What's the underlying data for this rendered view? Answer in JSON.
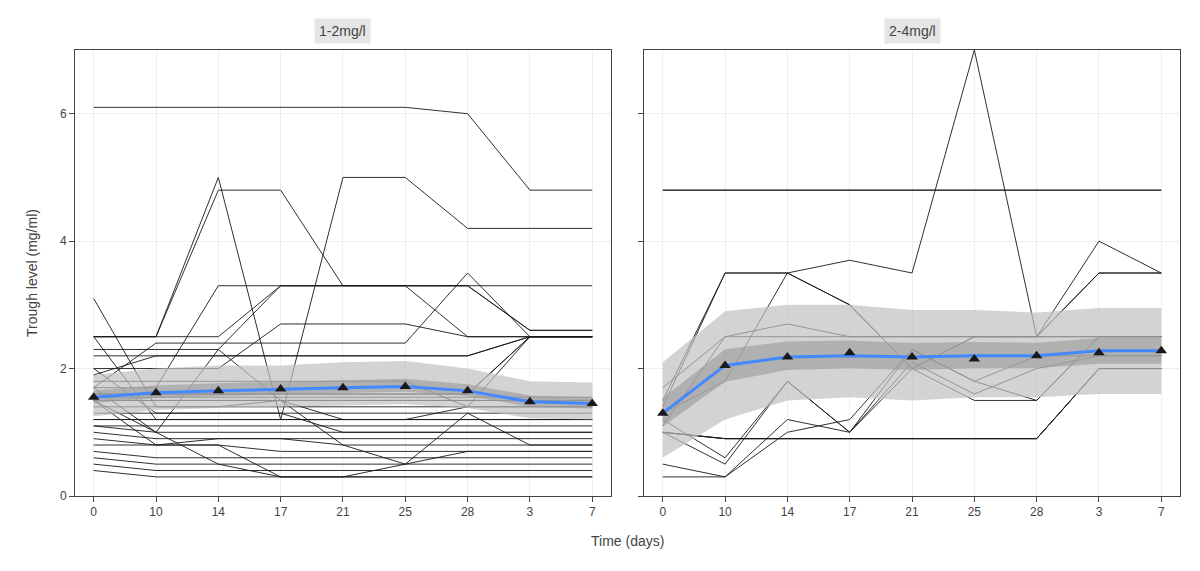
{
  "chart_data": [
    {
      "type": "line",
      "title": "1-2mg/l",
      "xlabel": "Time (days)",
      "ylabel": "Trough level (mg/ml)",
      "categories": [
        "0",
        "10",
        "14",
        "17",
        "21",
        "25",
        "28",
        "3",
        "7"
      ],
      "ylim": [
        0,
        7
      ],
      "yticks": [
        0,
        2,
        4,
        6
      ],
      "grid": true,
      "series": [
        {
          "type": "line",
          "color": "#1a1a1a",
          "values": [
            6.1,
            6.1,
            6.1,
            6.1,
            6.1,
            6.1,
            6.0,
            4.8,
            4.8
          ]
        },
        {
          "type": "line",
          "color": "#1a1a1a",
          "values": [
            2.5,
            2.5,
            5.0,
            1.2,
            5.0,
            5.0,
            4.2,
            4.2,
            4.2
          ]
        },
        {
          "type": "line",
          "color": "#1a1a1a",
          "values": [
            2.5,
            2.5,
            4.8,
            4.8,
            3.3,
            3.3,
            3.3,
            3.3,
            3.3
          ]
        },
        {
          "type": "line",
          "color": "#1a1a1a",
          "values": [
            2.5,
            2.5,
            2.5,
            3.3,
            3.3,
            3.3,
            3.3,
            2.6,
            2.6
          ]
        },
        {
          "type": "line",
          "color": "#1a1a1a",
          "values": [
            2.3,
            2.3,
            2.3,
            3.3,
            3.3,
            3.3,
            3.3,
            2.6,
            2.6
          ]
        },
        {
          "type": "line",
          "color": "#1a1a1a",
          "values": [
            2.2,
            2.2,
            2.2,
            2.2,
            2.2,
            2.2,
            2.2,
            2.5,
            2.5
          ]
        },
        {
          "type": "line",
          "color": "#1a1a1a",
          "values": [
            2.0,
            2.0,
            2.0,
            2.7,
            2.7,
            2.7,
            2.5,
            2.5,
            2.5
          ]
        },
        {
          "type": "line",
          "color": "#1a1a1a",
          "values": [
            1.9,
            2.2,
            2.2,
            2.2,
            2.2,
            2.2,
            2.2,
            2.5,
            2.5
          ]
        },
        {
          "type": "line",
          "color": "#1a1a1a",
          "values": [
            1.8,
            1.8,
            1.8,
            1.8,
            1.8,
            1.8,
            1.4,
            2.5,
            2.5
          ]
        },
        {
          "type": "line",
          "color": "#1a1a1a",
          "values": [
            1.7,
            2.4,
            2.4,
            2.4,
            2.4,
            2.4,
            3.5,
            2.5,
            2.5
          ]
        },
        {
          "type": "line",
          "color": "#1a1a1a",
          "values": [
            1.7,
            1.7,
            3.3,
            3.3,
            3.3,
            3.3,
            2.5,
            2.5,
            2.5
          ]
        },
        {
          "type": "line",
          "color": "#1a1a1a",
          "values": [
            1.6,
            1.6,
            1.6,
            1.6,
            1.6,
            1.6,
            1.6,
            2.5,
            2.5
          ]
        },
        {
          "type": "line",
          "color": "#1a1a1a",
          "values": [
            1.6,
            1.6,
            1.6,
            1.6,
            1.6,
            1.6,
            1.6,
            2.5,
            2.5
          ]
        },
        {
          "type": "line",
          "color": "#1a1a1a",
          "values": [
            1.55,
            1.55,
            1.55,
            1.55,
            1.55,
            1.55,
            1.55,
            1.55,
            1.55
          ]
        },
        {
          "type": "line",
          "color": "#1a1a1a",
          "values": [
            1.5,
            1.5,
            1.5,
            1.5,
            1.5,
            1.5,
            1.5,
            1.5,
            1.5
          ]
        },
        {
          "type": "line",
          "color": "#1a1a1a",
          "values": [
            1.5,
            1.5,
            1.5,
            1.5,
            1.5,
            1.5,
            1.5,
            1.5,
            1.5
          ]
        },
        {
          "type": "line",
          "color": "#1a1a1a",
          "values": [
            1.4,
            1.4,
            1.4,
            1.4,
            1.4,
            1.4,
            1.4,
            1.4,
            1.4
          ]
        },
        {
          "type": "line",
          "color": "#1a1a1a",
          "values": [
            1.3,
            1.3,
            1.3,
            1.3,
            1.3,
            1.3,
            1.3,
            1.3,
            1.3
          ]
        },
        {
          "type": "line",
          "color": "#1a1a1a",
          "values": [
            1.2,
            1.2,
            1.2,
            1.2,
            1.2,
            1.2,
            1.2,
            1.2,
            1.2
          ]
        },
        {
          "type": "line",
          "color": "#1a1a1a",
          "values": [
            1.2,
            1.2,
            1.2,
            1.2,
            1.2,
            1.2,
            1.2,
            1.2,
            1.2
          ]
        },
        {
          "type": "line",
          "color": "#1a1a1a",
          "values": [
            1.1,
            1.1,
            1.1,
            1.1,
            1.1,
            1.1,
            1.1,
            1.1,
            1.1
          ]
        },
        {
          "type": "line",
          "color": "#1a1a1a",
          "values": [
            1.1,
            1.0,
            1.0,
            1.0,
            1.0,
            1.0,
            1.0,
            1.0,
            1.0
          ]
        },
        {
          "type": "line",
          "color": "#1a1a1a",
          "values": [
            1.0,
            0.9,
            0.9,
            0.9,
            0.9,
            0.9,
            0.9,
            0.9,
            0.9
          ]
        },
        {
          "type": "line",
          "color": "#1a1a1a",
          "values": [
            0.9,
            0.8,
            0.9,
            0.9,
            0.8,
            0.8,
            0.8,
            0.8,
            0.8
          ]
        },
        {
          "type": "line",
          "color": "#1a1a1a",
          "values": [
            0.8,
            0.8,
            0.8,
            0.7,
            0.7,
            0.7,
            0.7,
            0.7,
            0.7
          ]
        },
        {
          "type": "line",
          "color": "#1a1a1a",
          "values": [
            0.7,
            0.6,
            0.6,
            0.6,
            0.6,
            0.6,
            0.6,
            0.6,
            0.6
          ]
        },
        {
          "type": "line",
          "color": "#1a1a1a",
          "values": [
            0.6,
            0.5,
            0.5,
            0.5,
            0.5,
            0.5,
            0.5,
            0.5,
            0.5
          ]
        },
        {
          "type": "line",
          "color": "#1a1a1a",
          "values": [
            0.5,
            0.4,
            0.4,
            0.4,
            0.4,
            0.4,
            0.4,
            0.4,
            0.4
          ]
        },
        {
          "type": "line",
          "color": "#1a1a1a",
          "values": [
            0.4,
            0.3,
            0.3,
            0.3,
            0.3,
            0.3,
            0.3,
            0.3,
            0.3
          ]
        },
        {
          "type": "line",
          "color": "#1a1a1a",
          "values": [
            2.5,
            1.2,
            1.2,
            1.2,
            1.2,
            1.2,
            1.4,
            1.4,
            1.4
          ]
        },
        {
          "type": "line",
          "color": "#1a1a1a",
          "values": [
            1.7,
            1.0,
            2.3,
            1.5,
            1.2,
            1.2,
            1.2,
            1.2,
            1.2
          ]
        },
        {
          "type": "line",
          "color": "#1a1a1a",
          "values": [
            3.1,
            1.4,
            1.4,
            1.5,
            0.8,
            0.5,
            1.3,
            0.8,
            0.8
          ]
        },
        {
          "type": "line",
          "color": "#1a1a1a",
          "values": [
            1.5,
            1.0,
            0.5,
            0.3,
            0.3,
            0.3,
            0.3,
            0.3,
            0.3
          ]
        },
        {
          "type": "line",
          "color": "#1a1a1a",
          "values": [
            1.5,
            0.8,
            0.8,
            0.3,
            0.3,
            0.5,
            0.7,
            0.7,
            0.7
          ]
        },
        {
          "type": "line",
          "color": "#1a1a1a",
          "values": [
            2.0,
            1.3,
            1.3,
            1.3,
            1.0,
            1.0,
            1.0,
            1.0,
            1.0
          ]
        },
        {
          "type": "band",
          "color": "#c0c0c0",
          "low": [
            1.25,
            1.35,
            1.38,
            1.4,
            1.42,
            1.44,
            1.38,
            1.22,
            1.2
          ],
          "high": [
            1.9,
            2.0,
            2.05,
            2.05,
            2.1,
            2.12,
            2.0,
            1.8,
            1.78
          ]
        },
        {
          "type": "band",
          "color": "#999999",
          "low": [
            1.46,
            1.539,
            1.569,
            1.596,
            1.616,
            1.636,
            1.569,
            1.402,
            1.375
          ],
          "high": [
            1.655,
            1.734,
            1.77,
            1.791,
            1.82,
            1.84,
            1.755,
            1.576,
            1.549
          ]
        },
        {
          "type": "line",
          "color": "#4488ff",
          "values": [
            1.55,
            1.62,
            1.65,
            1.68,
            1.7,
            1.72,
            1.65,
            1.48,
            1.45
          ]
        },
        {
          "type": "scatter",
          "marker": "triangle-up",
          "color": "#1a1a1a",
          "values": [
            1.55,
            1.62,
            1.65,
            1.68,
            1.7,
            1.72,
            1.65,
            1.48,
            1.45
          ]
        }
      ]
    },
    {
      "type": "line",
      "title": "2-4mg/l",
      "tick_labels": "x",
      "categories": [
        "0",
        "10",
        "14",
        "17",
        "21",
        "25",
        "28",
        "3",
        "7"
      ],
      "ylim": [
        0,
        7
      ],
      "yticks": [
        0,
        2,
        4,
        6
      ],
      "grid": true,
      "series": [
        {
          "type": "line",
          "color": "#1a1a1a",
          "values": [
            4.8,
            4.8,
            4.8,
            4.8,
            4.8,
            4.8,
            4.8,
            4.8,
            4.8
          ]
        },
        {
          "type": "line",
          "color": "#1a1a1a",
          "values": [
            4.8,
            4.8,
            4.8,
            4.8,
            4.8,
            4.8,
            4.8,
            4.8,
            4.8
          ]
        },
        {
          "type": "line",
          "color": "#1a1a1a",
          "values": [
            1.3,
            1.8,
            3.5,
            3.7,
            3.5,
            7.0,
            2.5,
            4.0,
            3.5
          ]
        },
        {
          "type": "line",
          "color": "#1a1a1a",
          "values": [
            1.4,
            3.5,
            3.5,
            3.0,
            2.0,
            2.5,
            2.5,
            3.5,
            3.5
          ]
        },
        {
          "type": "line",
          "color": "#1a1a1a",
          "values": [
            1.5,
            3.5,
            3.5,
            3.0,
            2.0,
            2.5,
            2.5,
            3.5,
            3.5
          ]
        },
        {
          "type": "line",
          "color": "#1a1a1a",
          "values": [
            1.1,
            2.5,
            2.5,
            2.5,
            2.5,
            2.5,
            2.5,
            2.5,
            2.5
          ]
        },
        {
          "type": "line",
          "color": "#1a1a1a",
          "values": [
            1.7,
            2.5,
            2.7,
            2.5,
            2.5,
            2.5,
            2.5,
            2.5,
            2.5
          ]
        },
        {
          "type": "line",
          "color": "#1a1a1a",
          "values": [
            1.2,
            0.6,
            1.8,
            1.0,
            2.3,
            1.8,
            2.2,
            2.2,
            2.2
          ]
        },
        {
          "type": "line",
          "color": "#1a1a1a",
          "values": [
            1.0,
            0.5,
            1.8,
            1.0,
            2.1,
            1.6,
            2.0,
            2.2,
            2.2
          ]
        },
        {
          "type": "line",
          "color": "#1a1a1a",
          "values": [
            1.0,
            0.9,
            0.9,
            0.9,
            0.9,
            0.9,
            0.9,
            2.0,
            2.0
          ]
        },
        {
          "type": "line",
          "color": "#1a1a1a",
          "values": [
            1.0,
            0.9,
            0.9,
            0.9,
            0.9,
            0.9,
            0.9,
            2.0,
            2.0
          ]
        },
        {
          "type": "line",
          "color": "#1a1a1a",
          "values": [
            1.0,
            0.9,
            0.9,
            0.9,
            0.9,
            0.9,
            0.9,
            2.0,
            2.0
          ]
        },
        {
          "type": "line",
          "color": "#1a1a1a",
          "values": [
            0.5,
            0.3,
            1.0,
            1.2,
            2.3,
            1.8,
            1.5,
            2.5,
            2.5
          ]
        },
        {
          "type": "line",
          "color": "#1a1a1a",
          "values": [
            0.3,
            0.3,
            1.2,
            1.0,
            2.0,
            1.5,
            1.5,
            2.5,
            2.5
          ]
        },
        {
          "type": "band",
          "color": "#c0c0c0",
          "low": [
            0.6,
            1.2,
            1.5,
            1.55,
            1.5,
            1.55,
            1.55,
            1.6,
            1.6
          ],
          "high": [
            2.1,
            2.9,
            3.0,
            3.0,
            2.92,
            2.92,
            2.88,
            2.95,
            2.95
          ]
        },
        {
          "type": "band",
          "color": "#999999",
          "low": [
            1.09,
            1.795,
            1.976,
            2.005,
            1.976,
            2.005,
            2.005,
            2.076,
            2.076
          ],
          "high": [
            1.54,
            2.305,
            2.426,
            2.44,
            2.402,
            2.416,
            2.404,
            2.481,
            2.481
          ]
        },
        {
          "type": "line",
          "color": "#4488ff",
          "values": [
            1.3,
            2.05,
            2.18,
            2.2,
            2.18,
            2.2,
            2.2,
            2.28,
            2.28
          ]
        },
        {
          "type": "scatter",
          "marker": "triangle-up",
          "color": "#1a1a1a",
          "values": [
            1.3,
            2.05,
            2.18,
            2.25,
            2.18,
            2.15,
            2.2,
            2.25,
            2.28
          ]
        }
      ]
    }
  ]
}
